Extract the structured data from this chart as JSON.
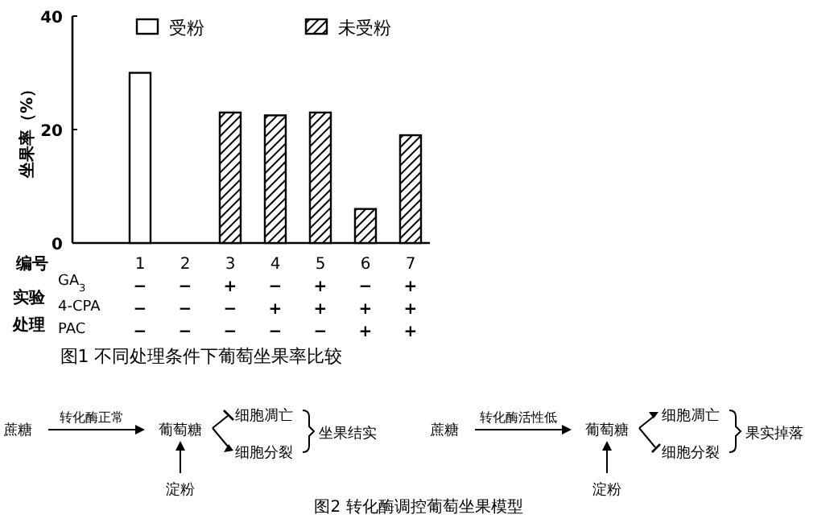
{
  "chart_data": [
    {
      "type": "bar",
      "title": "图1 不同处理条件下葡萄坐果率比较",
      "ylabel": "坐果率（%）",
      "categories": [
        "1",
        "2",
        "3",
        "4",
        "5",
        "6",
        "7"
      ],
      "series": [
        {
          "name": "受粉",
          "color": "#ffffff",
          "values": [
            30,
            null,
            null,
            null,
            null,
            null,
            null
          ]
        },
        {
          "name": "未受粉",
          "color": "#000000",
          "values": [
            null,
            null,
            23,
            22.5,
            23,
            6,
            19
          ]
        }
      ],
      "ylim": [
        0,
        40
      ],
      "yticks": [
        0,
        20,
        40
      ],
      "legend": "top",
      "grid": false,
      "annotations": [
        "编号",
        "实验",
        "处理",
        "GA$_{3}$",
        "4-CPA",
        "PAC",
        "− − + − + − +",
        "− − − + + + +",
        "− − − − − + +"
      ]
    },
    {
      "type": "other",
      "title": "图2 转化酶调控葡萄坐果模型",
      "annotations": [
        "蔗糖",
        "转化酶正常",
        "葡萄糖",
        "淀粉",
        "细胞凋亡",
        "细胞分裂",
        "坐果结实",
        "蔗糖",
        "转化酶活性低",
        "葡萄糖",
        "淀粉",
        "细胞凋亡",
        "细胞分裂",
        "果实掉落"
      ]
    }
  ]
}
